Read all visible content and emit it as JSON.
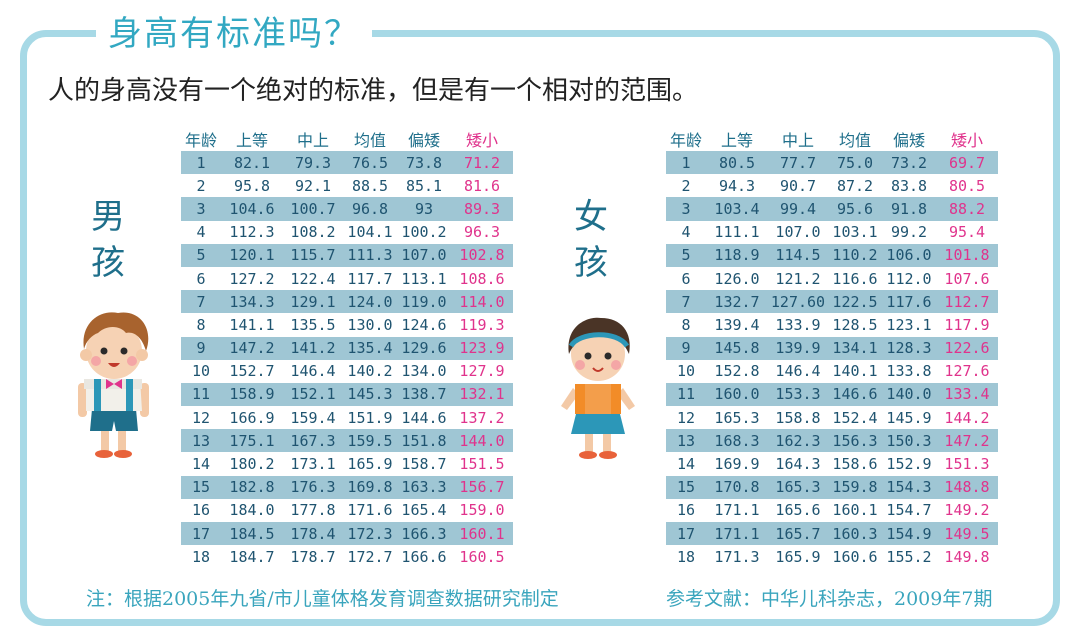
{
  "title": "身高有标准吗？",
  "subtitle": "人的身高没有一个绝对的标准，但是有一个相对的范围。",
  "headers": [
    "年龄",
    "上等",
    "中上",
    "均值",
    "偏矮",
    "矮小"
  ],
  "boy": {
    "label": "男孩",
    "rows": [
      [
        "1",
        "82.1",
        "79.3",
        "76.5",
        "73.8",
        "71.2"
      ],
      [
        "2",
        "95.8",
        "92.1",
        "88.5",
        "85.1",
        "81.6"
      ],
      [
        "3",
        "104.6",
        "100.7",
        "96.8",
        "93",
        "89.3"
      ],
      [
        "4",
        "112.3",
        "108.2",
        "104.1",
        "100.2",
        "96.3"
      ],
      [
        "5",
        "120.1",
        "115.7",
        "111.3",
        "107.0",
        "102.8"
      ],
      [
        "6",
        "127.2",
        "122.4",
        "117.7",
        "113.1",
        "108.6"
      ],
      [
        "7",
        "134.3",
        "129.1",
        "124.0",
        "119.0",
        "114.0"
      ],
      [
        "8",
        "141.1",
        "135.5",
        "130.0",
        "124.6",
        "119.3"
      ],
      [
        "9",
        "147.2",
        "141.2",
        "135.4",
        "129.6",
        "123.9"
      ],
      [
        "10",
        "152.7",
        "146.4",
        "140.2",
        "134.0",
        "127.9"
      ],
      [
        "11",
        "158.9",
        "152.1",
        "145.3",
        "138.7",
        "132.1"
      ],
      [
        "12",
        "166.9",
        "159.4",
        "151.9",
        "144.6",
        "137.2"
      ],
      [
        "13",
        "175.1",
        "167.3",
        "159.5",
        "151.8",
        "144.0"
      ],
      [
        "14",
        "180.2",
        "173.1",
        "165.9",
        "158.7",
        "151.5"
      ],
      [
        "15",
        "182.8",
        "176.3",
        "169.8",
        "163.3",
        "156.7"
      ],
      [
        "16",
        "184.0",
        "177.8",
        "171.6",
        "165.4",
        "159.0"
      ],
      [
        "17",
        "184.5",
        "178.4",
        "172.3",
        "166.3",
        "160.1"
      ],
      [
        "18",
        "184.7",
        "178.7",
        "172.7",
        "166.6",
        "160.5"
      ]
    ]
  },
  "girl": {
    "label": "女孩",
    "rows": [
      [
        "1",
        "80.5",
        "77.7",
        "75.0",
        "73.2",
        "69.7"
      ],
      [
        "2",
        "94.3",
        "90.7",
        "87.2",
        "83.8",
        "80.5"
      ],
      [
        "3",
        "103.4",
        "99.4",
        "95.6",
        "91.8",
        "88.2"
      ],
      [
        "4",
        "111.1",
        "107.0",
        "103.1",
        "99.2",
        "95.4"
      ],
      [
        "5",
        "118.9",
        "114.5",
        "110.2",
        "106.0",
        "101.8"
      ],
      [
        "6",
        "126.0",
        "121.2",
        "116.6",
        "112.0",
        "107.6"
      ],
      [
        "7",
        "132.7",
        "127.60",
        "122.5",
        "117.6",
        "112.7"
      ],
      [
        "8",
        "139.4",
        "133.9",
        "128.5",
        "123.1",
        "117.9"
      ],
      [
        "9",
        "145.8",
        "139.9",
        "134.1",
        "128.3",
        "122.6"
      ],
      [
        "10",
        "152.8",
        "146.4",
        "140.1",
        "133.8",
        "127.6"
      ],
      [
        "11",
        "160.0",
        "153.3",
        "146.6",
        "140.0",
        "133.4"
      ],
      [
        "12",
        "165.3",
        "158.8",
        "152.4",
        "145.9",
        "144.2"
      ],
      [
        "13",
        "168.3",
        "162.3",
        "156.3",
        "150.3",
        "147.2"
      ],
      [
        "14",
        "169.9",
        "164.3",
        "158.6",
        "152.9",
        "151.3"
      ],
      [
        "15",
        "170.8",
        "165.3",
        "159.8",
        "154.3",
        "148.8"
      ],
      [
        "16",
        "171.1",
        "165.6",
        "160.1",
        "154.7",
        "149.2"
      ],
      [
        "17",
        "171.1",
        "165.7",
        "160.3",
        "154.9",
        "149.5"
      ],
      [
        "18",
        "171.3",
        "165.9",
        "160.6",
        "155.2",
        "149.8"
      ]
    ]
  },
  "footer": {
    "note": "注：根据2005年九省/市儿童体格发育调查数据研究制定",
    "reference": "参考文献：中华儿科杂志，2009年7期"
  },
  "colors": {
    "frame": "#a7d9e6",
    "title": "#32a8c2",
    "band": "#9fc6d4",
    "header": "#1f6f8b",
    "short": "#e0338c"
  },
  "icons": [
    "boy-illustration",
    "girl-illustration"
  ]
}
